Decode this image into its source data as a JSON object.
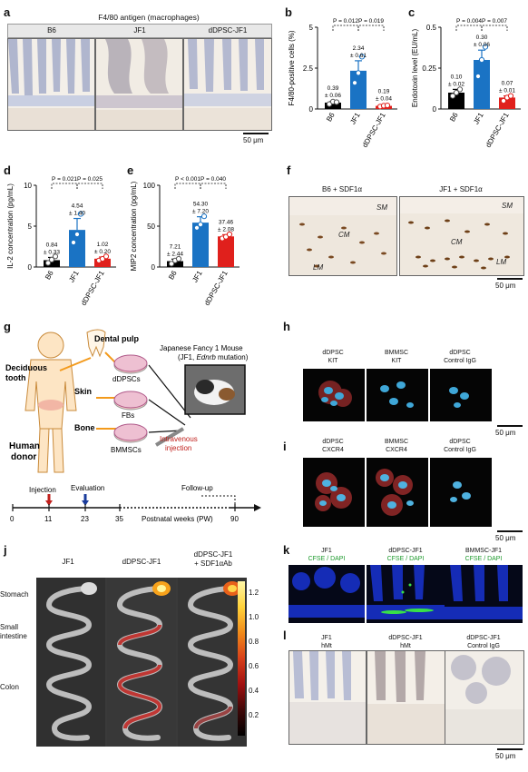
{
  "panels": {
    "a": {
      "label": "a",
      "title": "F4/80 antigen (macrophages)",
      "groups": [
        "B6",
        "JF1",
        "dDPSC-JF1"
      ],
      "scale": "50 μm"
    },
    "f": {
      "label": "f",
      "titles": [
        "B6 + SDF1α",
        "JF1 + SDF1α"
      ],
      "layers": [
        "SM",
        "CM",
        "LM"
      ],
      "scale": "50 μm"
    },
    "g": {
      "label": "g",
      "tissues": [
        "Dental pulp",
        "Deciduous tooth",
        "Skin",
        "Bone"
      ],
      "cells": [
        "dDPSCs",
        "FBs",
        "BMMSCs"
      ],
      "donor": "Human donor",
      "mouse_line1": "Japanese Fancy 1 Mouse",
      "mouse_line2_a": "(JF1, ",
      "mouse_line2_b": "Ednrb",
      "mouse_line2_c": " mutation)",
      "injection": "Intravenous injection",
      "timeline": {
        "injection_label": "Injection",
        "evaluation_label": "Evaluation",
        "followup_label": "Follow-up",
        "ticks": [
          "0",
          "11",
          "23",
          "35",
          "90"
        ],
        "axis_label": "Postnatal weeks (PW)"
      }
    },
    "h": {
      "label": "h",
      "titles": [
        [
          "dDPSC",
          "KIT"
        ],
        [
          "BMMSC",
          "KIT"
        ],
        [
          "dDPSC",
          "Control IgG"
        ]
      ],
      "scale": "50 μm"
    },
    "i": {
      "label": "i",
      "titles": [
        [
          "dDPSC",
          "CXCR4"
        ],
        [
          "BMMSC",
          "CXCR4"
        ],
        [
          "dDPSC",
          "Control IgG"
        ]
      ],
      "scale": "50 μm"
    },
    "j": {
      "label": "j",
      "titles": [
        [
          "JF1"
        ],
        [
          "dDPSC-JF1"
        ],
        [
          "dDPSC-JF1",
          "+ SDF1αAb"
        ]
      ],
      "organs": [
        "Stomach",
        "Small intestine",
        "Colon"
      ],
      "colorbar_ticks": [
        "1.2",
        "1.0",
        "0.8",
        "0.6",
        "0.4",
        "0.2"
      ]
    },
    "k": {
      "label": "k",
      "titles": [
        [
          "JF1",
          "CFSE / DAPI"
        ],
        [
          "dDPSC-JF1",
          "CFSE / DAPI"
        ],
        [
          "BMMSC-JF1",
          "CFSE / DAPI"
        ]
      ],
      "scale": "50 μm"
    },
    "l": {
      "label": "l",
      "titles": [
        [
          "JF1",
          "hMt"
        ],
        [
          "dDPSC-JF1",
          "hMt"
        ],
        [
          "dDPSC-JF1",
          "Control IgG"
        ]
      ],
      "scale": "50 μm"
    }
  },
  "chart_data": [
    {
      "panel": "b",
      "type": "bar",
      "categories": [
        "B6",
        "JF1",
        "dDPSC-JF1"
      ],
      "values": [
        0.39,
        2.34,
        0.19
      ],
      "value_labels": [
        "0.39\n± 0.06",
        "2.34\n± 0.61",
        "0.19\n± 0.04"
      ],
      "errors": [
        0.06,
        0.61,
        0.04
      ],
      "points": [
        [
          0.3,
          0.45,
          0.42
        ],
        [
          1.6,
          2.2,
          3.2
        ],
        [
          0.15,
          0.2,
          0.22
        ]
      ],
      "colors": [
        "#000000",
        "#1a73c4",
        "#e0201c"
      ],
      "ylabel": "F4/80-positive cells (%)",
      "ylim": [
        0,
        5
      ],
      "yticks": [
        "0",
        "2.5",
        "5"
      ],
      "pvalues": [
        {
          "from": 0,
          "to": 1,
          "text": "P = 0.012"
        },
        {
          "from": 1,
          "to": 2,
          "text": "P = 0.019"
        }
      ]
    },
    {
      "panel": "c",
      "type": "bar",
      "categories": [
        "B6",
        "JF1",
        "dDPSC-JF1"
      ],
      "values": [
        0.1,
        0.3,
        0.07
      ],
      "value_labels": [
        "0.10\n± 0.02",
        "0.30\n± 0.06",
        "0.07\n± 0.01"
      ],
      "errors": [
        0.02,
        0.06,
        0.01
      ],
      "points": [
        [
          0.08,
          0.1,
          0.12
        ],
        [
          0.2,
          0.3,
          0.38
        ],
        [
          0.05,
          0.07,
          0.08
        ]
      ],
      "colors": [
        "#000000",
        "#1a73c4",
        "#e0201c"
      ],
      "ylabel": "Endotoxin level (EU/mL)",
      "ylim": [
        0,
        0.5
      ],
      "yticks": [
        "0",
        "0.25",
        "0.5"
      ],
      "pvalues": [
        {
          "from": 0,
          "to": 1,
          "text": "P = 0.004"
        },
        {
          "from": 1,
          "to": 2,
          "text": "P = 0.007"
        }
      ]
    },
    {
      "panel": "d",
      "type": "bar",
      "categories": [
        "B6",
        "JF1",
        "dDPSC-JF1"
      ],
      "values": [
        0.84,
        4.54,
        1.02
      ],
      "value_labels": [
        "0.84\n± 0.33",
        "4.54\n± 1.40",
        "1.02\n± 0.20"
      ],
      "errors": [
        0.33,
        1.4,
        0.2
      ],
      "points": [
        [
          0.5,
          0.9,
          1.3
        ],
        [
          3.0,
          4.0,
          6.5
        ],
        [
          0.8,
          1.0,
          1.3
        ]
      ],
      "colors": [
        "#000000",
        "#1a73c4",
        "#e0201c"
      ],
      "ylabel": "IL-2 concentration (pg/mL)",
      "ylim": [
        0,
        10
      ],
      "yticks": [
        "0",
        "5",
        "10"
      ],
      "pvalues": [
        {
          "from": 0,
          "to": 1,
          "text": "P = 0.021"
        },
        {
          "from": 1,
          "to": 2,
          "text": "P = 0.025"
        }
      ]
    },
    {
      "panel": "e",
      "type": "bar",
      "categories": [
        "B6",
        "JF1",
        "dDPSC-JF1"
      ],
      "values": [
        7.21,
        54.3,
        37.46
      ],
      "value_labels": [
        "7.21\n± 2.44",
        "54.30\n± 7.20",
        "37.46\n± 2.08"
      ],
      "errors": [
        2.44,
        7.2,
        2.08
      ],
      "points": [
        [
          4,
          8,
          10
        ],
        [
          48,
          52,
          62
        ],
        [
          35,
          37,
          40
        ]
      ],
      "colors": [
        "#000000",
        "#1a73c4",
        "#e0201c"
      ],
      "ylabel": "MIP2 concentration (pg/mL)",
      "ylim": [
        0,
        100
      ],
      "yticks": [
        "0",
        "50",
        "100"
      ],
      "pvalues": [
        {
          "from": 0,
          "to": 1,
          "text": "P < 0.001"
        },
        {
          "from": 1,
          "to": 2,
          "text": "P = 0.040"
        }
      ]
    }
  ]
}
